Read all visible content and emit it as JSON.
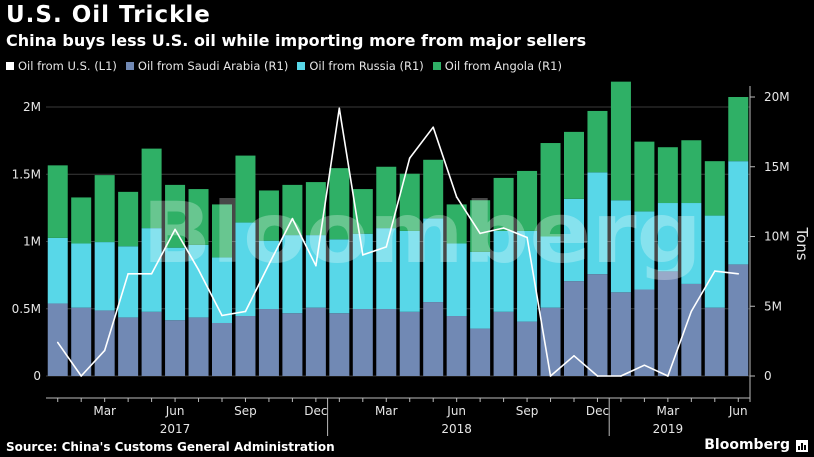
{
  "chart_data": {
    "type": "bar",
    "title": "U.S. Oil Trickle",
    "subtitle": "China buys less U.S. oil while importing more from major sellers",
    "legend_placement": "top-left",
    "grid": true,
    "watermark": "Bloomberg",
    "x": [
      "2017-01",
      "2017-02",
      "2017-03",
      "2017-04",
      "2017-05",
      "2017-06",
      "2017-07",
      "2017-08",
      "2017-09",
      "2017-10",
      "2017-11",
      "2017-12",
      "2018-01",
      "2018-02",
      "2018-03",
      "2018-04",
      "2018-05",
      "2018-06",
      "2018-07",
      "2018-08",
      "2018-09",
      "2018-10",
      "2018-11",
      "2018-12",
      "2019-01",
      "2019-02",
      "2019-03",
      "2019-04",
      "2019-05",
      "2019-06"
    ],
    "x_tick_labels": [
      {
        "month": "2017-03",
        "label": "Mar"
      },
      {
        "month": "2017-06",
        "label": "Jun"
      },
      {
        "month": "2017-09",
        "label": "Sep"
      },
      {
        "month": "2017-12",
        "label": "Dec"
      },
      {
        "month": "2018-03",
        "label": "Mar"
      },
      {
        "month": "2018-06",
        "label": "Jun"
      },
      {
        "month": "2018-09",
        "label": "Sep"
      },
      {
        "month": "2018-12",
        "label": "Dec"
      },
      {
        "month": "2019-03",
        "label": "Mar"
      },
      {
        "month": "2019-06",
        "label": "Jun"
      }
    ],
    "year_labels": [
      {
        "label": "2017",
        "month": "2017-06"
      },
      {
        "label": "2018",
        "month": "2018-06"
      },
      {
        "label": "2019",
        "month": "2019-03"
      }
    ],
    "year_separators": [
      "2017-12",
      "2018-12"
    ],
    "y_left": {
      "min": 0,
      "max": 2000000,
      "ticks": [
        0,
        500000,
        1000000,
        1500000,
        2000000
      ],
      "tick_labels": [
        "0",
        "0.5M",
        "1M",
        "1.5M",
        "2M"
      ]
    },
    "y_right": {
      "min": 0,
      "max": 20000000,
      "ticks": [
        0,
        5000000,
        10000000,
        15000000,
        20000000
      ],
      "tick_labels": [
        "0",
        "5M",
        "10M",
        "15M",
        "20M"
      ],
      "label": "Tons"
    },
    "stacked_series": [
      {
        "name": "Oil from Saudi Arabia (R1)",
        "axis": "right",
        "color": "#7189b4",
        "values": [
          5200000,
          4900000,
          4700000,
          4200000,
          4600000,
          4000000,
          4200000,
          3800000,
          4300000,
          4800000,
          4500000,
          4900000,
          4500000,
          4800000,
          4800000,
          4600000,
          5300000,
          4300000,
          3400000,
          4600000,
          3900000,
          4900000,
          6800000,
          7300000,
          6000000,
          6200000,
          7500000,
          6600000,
          4900000,
          8000000
        ]
      },
      {
        "name": "Oil from Russia (R1)",
        "axis": "right",
        "color": "#58d7e8",
        "values": [
          4700000,
          4600000,
          4900000,
          5100000,
          6000000,
          5200000,
          5200000,
          4700000,
          6700000,
          4900000,
          5600000,
          5200000,
          5300000,
          5400000,
          5800000,
          5800000,
          6000000,
          5200000,
          5500000,
          5800000,
          6500000,
          5100000,
          5900000,
          7300000,
          6600000,
          5600000,
          4900000,
          5800000,
          6600000,
          7400000
        ]
      },
      {
        "name": "Oil from Angola (R1)",
        "axis": "right",
        "color": "#2fb066",
        "values": [
          5200000,
          3300000,
          4800000,
          3900000,
          5700000,
          4500000,
          4000000,
          3800000,
          4800000,
          3600000,
          3600000,
          3800000,
          5100000,
          3200000,
          4400000,
          4100000,
          4200000,
          2800000,
          3700000,
          3800000,
          4300000,
          6700000,
          4800000,
          4400000,
          8500000,
          5000000,
          4000000,
          4500000,
          3900000,
          4600000
        ]
      }
    ],
    "line_series": {
      "name": "Oil from U.S. (L1)",
      "axis": "left",
      "color": "#ffffff",
      "values": [
        250000,
        0,
        190000,
        760000,
        760000,
        1090000,
        790000,
        450000,
        480000,
        830000,
        1170000,
        820000,
        1990000,
        900000,
        960000,
        1620000,
        1850000,
        1330000,
        1060000,
        1100000,
        1030000,
        0,
        150000,
        0,
        0,
        80000,
        0,
        480000,
        780000,
        760000
      ]
    }
  },
  "legend": [
    {
      "label": "Oil from U.S. (L1)",
      "color": "#ffffff"
    },
    {
      "label": "Oil from Saudi Arabia (R1)",
      "color": "#7189b4"
    },
    {
      "label": "Oil from Russia (R1)",
      "color": "#58d7e8"
    },
    {
      "label": "Oil from Angola (R1)",
      "color": "#2fb066"
    }
  ],
  "footer": {
    "source": "Source: China's Customs General Administration",
    "brand": "Bloomberg"
  }
}
